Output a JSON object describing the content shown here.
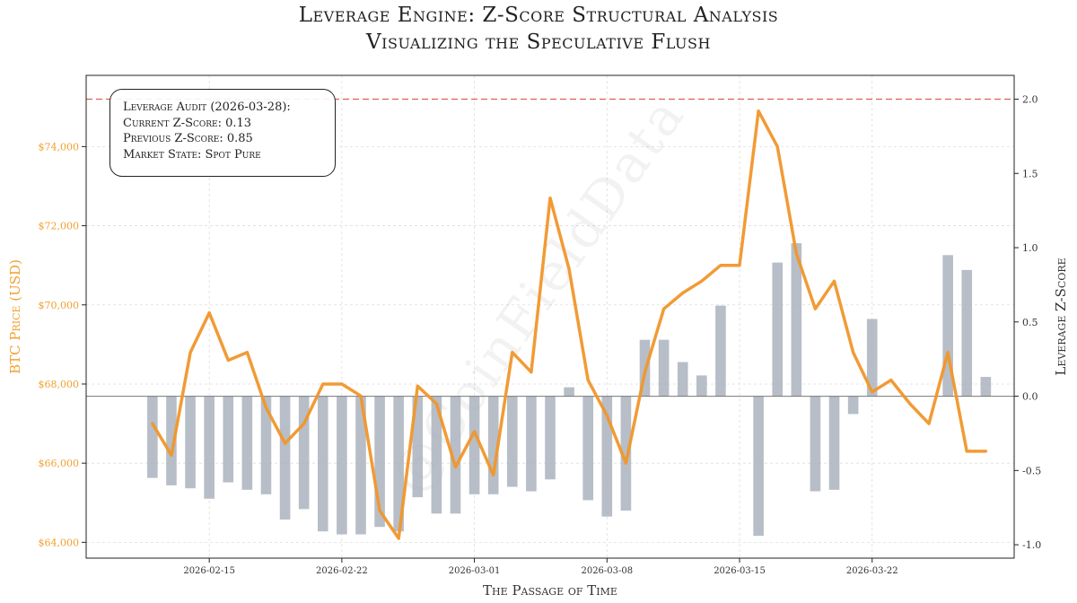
{
  "title": {
    "line1": "Leverage Engine: Z-Score Structural Analysis",
    "line2": "Visualizing the Speculative Flush"
  },
  "audit_box": {
    "heading": "Leverage Audit (2026-03-28):",
    "current": "Current Z-Score: 0.13",
    "previous": "Previous Z-Score: 0.85",
    "state": "Market State: Spot Pure"
  },
  "watermark": "@CoinFieldData",
  "colors": {
    "price_line": "#f0962a",
    "bars": "#aab3bd",
    "threshold": "#e06050",
    "left_axis_text": "#f0a030",
    "right_axis_text": "#333333"
  },
  "chart_data": {
    "type": "bar+line",
    "title": "Leverage Engine: Z-Score Structural Analysis — Visualizing the Speculative Flush",
    "xlabel": "The Passage of Time",
    "ylabel_left": "BTC Price (USD)",
    "ylabel_right": "Leverage Z-Score",
    "x_ticks": [
      "2026-02-15",
      "2026-02-22",
      "2026-03-01",
      "2026-03-08",
      "2026-03-15",
      "2026-03-22"
    ],
    "x_tick_positions": [
      3,
      10,
      17,
      24,
      31,
      38
    ],
    "xlim": [
      -3.5,
      45.5
    ],
    "y_left_ticks": [
      "$64,000",
      "$66,000",
      "$68,000",
      "$70,000",
      "$72,000",
      "$74,000"
    ],
    "y_left_tick_values": [
      64000,
      66000,
      68000,
      70000,
      72000,
      74000
    ],
    "y_left_lim": [
      63600,
      75800
    ],
    "y_right_ticks": [
      "-1.0",
      "-0.5",
      "0.0",
      "0.5",
      "1.0",
      "1.5",
      "2.0"
    ],
    "y_right_tick_values": [
      -1.0,
      -0.5,
      0.0,
      0.5,
      1.0,
      1.5,
      2.0
    ],
    "y_right_lim": [
      -1.09,
      2.16
    ],
    "threshold_z": 2.0,
    "zero_line_z": 0.0,
    "grid": true,
    "series": [
      {
        "name": "Leverage Z-Score",
        "kind": "bar",
        "values": [
          -0.55,
          -0.6,
          -0.62,
          -0.69,
          -0.58,
          -0.63,
          -0.66,
          -0.83,
          -0.76,
          -0.91,
          -0.93,
          -0.93,
          -0.88,
          -0.91,
          -0.68,
          -0.79,
          -0.79,
          -0.66,
          -0.66,
          -0.61,
          -0.64,
          -0.56,
          0.06,
          -0.7,
          -0.81,
          -0.77,
          0.38,
          0.38,
          0.23,
          0.14,
          0.61,
          0.0,
          -0.94,
          0.9,
          1.03,
          -0.64,
          -0.63,
          -0.12,
          0.52,
          0.0,
          0.0,
          0.0,
          0.95,
          0.85,
          0.13
        ]
      },
      {
        "name": "BTC Price (USD)",
        "kind": "line",
        "values": [
          67000,
          66200,
          68800,
          69800,
          68600,
          68800,
          67400,
          66500,
          67000,
          68000,
          68000,
          67700,
          64800,
          64100,
          67950,
          67500,
          65900,
          66800,
          65700,
          68800,
          68300,
          72700,
          70900,
          68100,
          67200,
          66000,
          68300,
          69900,
          70300,
          70600,
          71000,
          71000,
          74900,
          74000,
          71300,
          69900,
          70600,
          68800,
          67800,
          68100,
          67500,
          67000,
          68800,
          66300,
          66300
        ]
      }
    ]
  }
}
